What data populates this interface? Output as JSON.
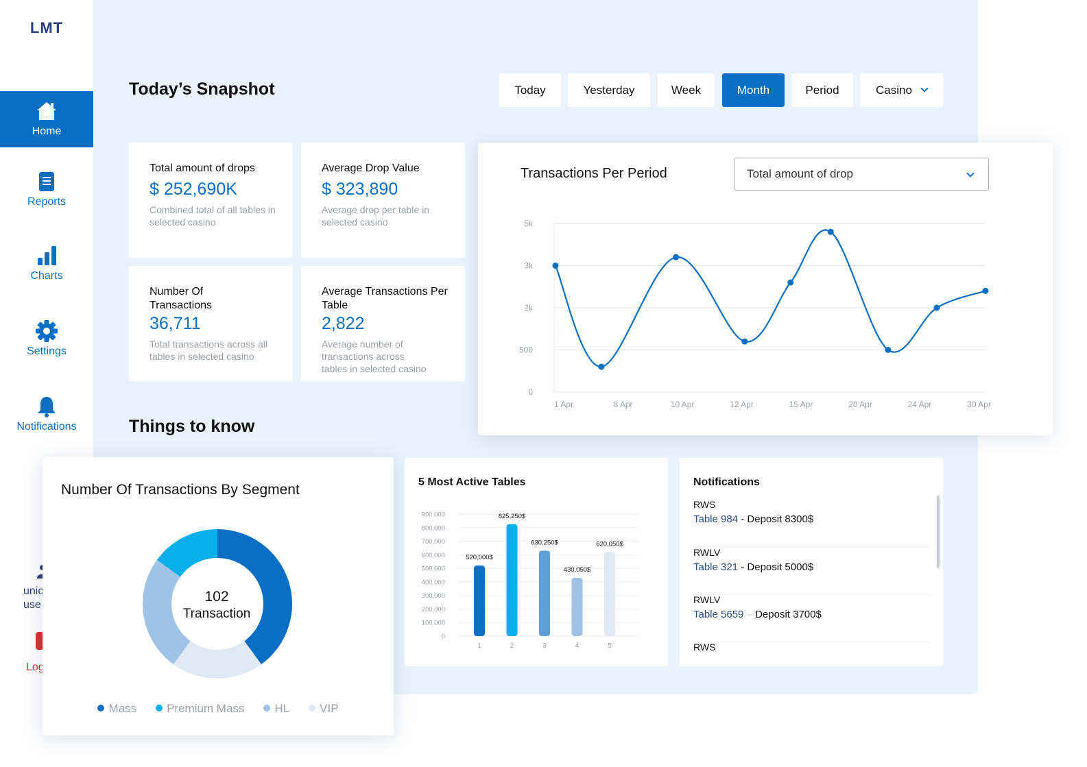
{
  "app": {
    "logo": "LMT"
  },
  "sidebar": {
    "items": [
      {
        "label": "Home",
        "icon": "home-icon",
        "active": true
      },
      {
        "label": "Reports",
        "icon": "document-icon",
        "active": false
      },
      {
        "label": "Charts",
        "icon": "bar-chart-icon",
        "active": false
      },
      {
        "label": "Settings",
        "icon": "gear-icon",
        "active": false
      },
      {
        "label": "Notifications",
        "icon": "bell-icon",
        "active": false
      }
    ],
    "partial": {
      "users_line1": "unic",
      "users_line2": "use",
      "logout": "Log"
    }
  },
  "header": {
    "title": "Today’s Snapshot",
    "filters": [
      "Today",
      "Yesterday",
      "Week",
      "Month",
      "Period",
      "Casino"
    ],
    "active_filter": "Month"
  },
  "stats": [
    {
      "title": "Total amount of drops",
      "value": "$ 252,690K",
      "desc": "Combined total of all tables in selected casino"
    },
    {
      "title": "Average Drop Value",
      "value": "$ 323,890",
      "desc": "Average drop per table in selected casino"
    },
    {
      "title": "Number Of Transactions",
      "value": "36,711",
      "desc": "Total transactions across all tables in selected casino"
    },
    {
      "title": "Average Transactions Per Table",
      "value": "2,822",
      "desc": "Average number of transactions across tables in selected casino"
    }
  ],
  "line_card": {
    "title": "Transactions Per Period",
    "select_value": "Total amount of drop"
  },
  "section": {
    "title": "Things to know"
  },
  "donut_card": {
    "title": "Number Of Transactions By Segment",
    "center_value": "102",
    "center_label": "Transaction"
  },
  "bar_card": {
    "title": "5 Most Active Tables"
  },
  "notifications": {
    "title": "Notifications",
    "items": [
      {
        "casino": "RWS",
        "table": "Table 984",
        "sep": "-",
        "text": "Deposit 8300$"
      },
      {
        "casino": "RWLV",
        "table": "Table 321",
        "sep": "-",
        "text": "Deposit 5000$"
      },
      {
        "casino": "RWLV",
        "table": "Table 5659",
        "sep": "–",
        "text": "Deposit 3700$"
      },
      {
        "casino": "RWS",
        "table": "",
        "sep": "",
        "text": ""
      }
    ]
  },
  "colors": {
    "primary": "#0a6fc4",
    "panel": "#eaf3fd",
    "mass": "#0a6fc4",
    "premium_mass": "#0aaeea",
    "hl": "#9fc3e6",
    "vip": "#dfe8f3"
  },
  "chart_data": [
    {
      "type": "line",
      "title": "Transactions Per Period",
      "x": [
        "1 Apr",
        "8 Apr",
        "10 Apr",
        "12 Apr",
        "15 Apr",
        "20 Apr",
        "24 Apr",
        "30 Apr"
      ],
      "y_ticks": [
        "0",
        "500",
        "2k",
        "3k",
        "5k"
      ],
      "series": [
        {
          "values": [
            3.0,
            0.3,
            3.2,
            1.2,
            2.6,
            3.8,
            1.0,
            2.4
          ]
        }
      ],
      "point_x": [
        0,
        0.8,
        2.1,
        3.3,
        4.1,
        4.8,
        5.8,
        6.65,
        7.5
      ],
      "point_y": [
        3.0,
        0.6,
        3.2,
        1.2,
        2.6,
        3.8,
        1.0,
        2.0,
        2.4
      ]
    },
    {
      "type": "pie",
      "title": "Number Of Transactions By Segment",
      "categories": [
        "Mass",
        "Premium Mass",
        "HL",
        "VIP"
      ],
      "values": [
        40,
        15,
        25,
        20
      ]
    },
    {
      "type": "bar",
      "title": "5 Most Active Tables",
      "categories": [
        "1",
        "2",
        "3",
        "4",
        "5"
      ],
      "values": [
        520000,
        825250,
        630250,
        430050,
        620050
      ],
      "value_labels": [
        "520,000$",
        "825,250$",
        "630,250$",
        "430,050$",
        "620,050$"
      ],
      "y_ticks": [
        "0",
        "100,000",
        "200,000",
        "300,000",
        "400,000",
        "500,000",
        "600,000",
        "700,000",
        "800,000",
        "900,000"
      ],
      "ylim": [
        0,
        900000
      ],
      "bar_colors": [
        "#0a6fc4",
        "#0aaeea",
        "#5f9fd6",
        "#9fc3e6",
        "#dfe8f3"
      ]
    }
  ]
}
